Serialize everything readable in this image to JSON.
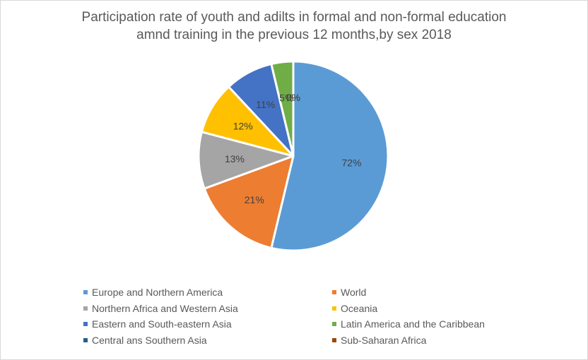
{
  "chart_data": {
    "type": "pie",
    "title_lines": [
      "Participation rate of youth and adilts in formal and non-formal education",
      "amnd training in the previous 12 months,by sex 2018"
    ],
    "series": [
      {
        "name": "Europe and Northern America",
        "value": 72,
        "label": "72%",
        "color": "#5b9bd5"
      },
      {
        "name": "World",
        "value": 21,
        "label": "21%",
        "color": "#ed7d31"
      },
      {
        "name": "Northern Africa and Western Asia",
        "value": 13,
        "label": "13%",
        "color": "#a5a5a5"
      },
      {
        "name": "Oceania",
        "value": 12,
        "label": "12%",
        "color": "#ffc000"
      },
      {
        "name": "Eastern and South-eastern Asia",
        "value": 11,
        "label": "11%",
        "color": "#4472c4"
      },
      {
        "name": "Latin America and the Caribbean",
        "value": 5,
        "label": "5%",
        "color": "#70ad47"
      },
      {
        "name": "Central ans Southern Asia",
        "value": 0,
        "label": "0%",
        "color": "#255e91"
      },
      {
        "name": "Sub-Saharan Africa",
        "value": 0,
        "label": "0%",
        "color": "#9e480e"
      }
    ],
    "legend_position": "bottom"
  }
}
